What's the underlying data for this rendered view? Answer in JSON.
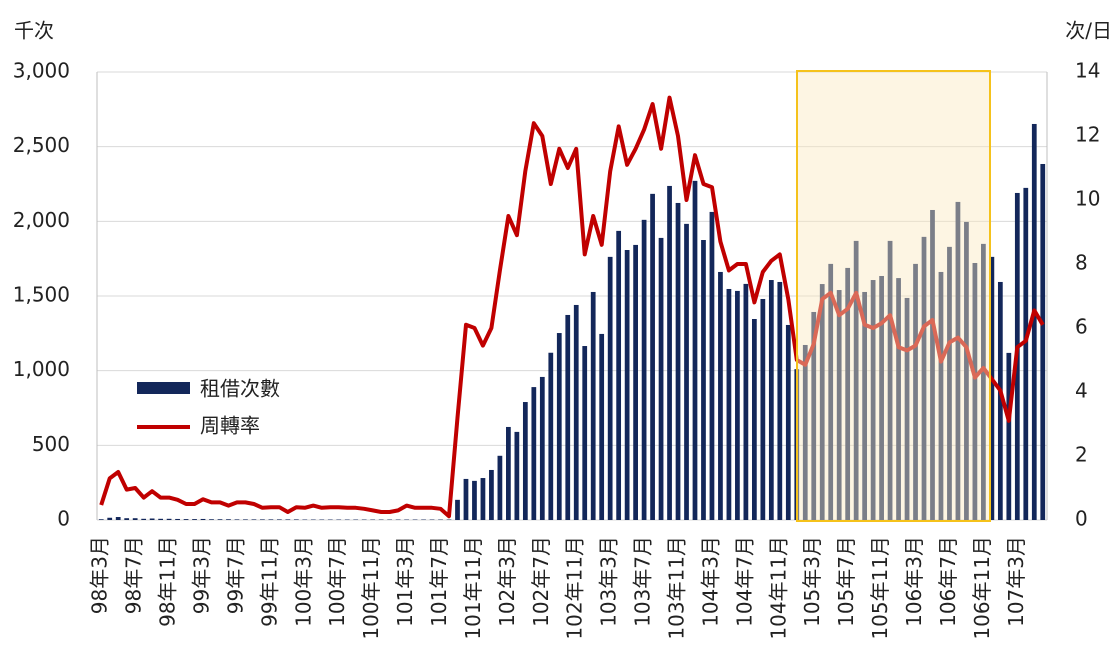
{
  "chart_data": {
    "type": "combo",
    "y_label": "千次",
    "y2_label": "次/日",
    "categories": [
      "98年3月",
      null,
      null,
      null,
      "98年7月",
      null,
      null,
      null,
      "98年11月",
      null,
      null,
      null,
      "99年3月",
      null,
      null,
      null,
      "99年7月",
      null,
      null,
      null,
      "99年11月",
      null,
      null,
      null,
      "100年3月",
      null,
      null,
      null,
      "100年7月",
      null,
      null,
      null,
      "100年11月",
      null,
      null,
      null,
      "101年3月",
      null,
      null,
      null,
      "101年7月",
      null,
      null,
      null,
      "101年11月",
      null,
      null,
      null,
      "102年3月",
      null,
      null,
      null,
      "102年7月",
      null,
      null,
      null,
      "102年11月",
      null,
      null,
      null,
      "103年3月",
      null,
      null,
      null,
      "103年7月",
      null,
      null,
      null,
      "103年11月",
      null,
      null,
      null,
      "104年3月",
      null,
      null,
      null,
      "104年7月",
      null,
      null,
      null,
      "104年11月",
      null,
      null,
      null,
      "105年3月",
      null,
      null,
      null,
      "105年7月",
      null,
      null,
      null,
      "105年11月",
      null,
      null,
      null,
      "106年3月",
      null,
      null,
      null,
      "106年7月",
      null,
      null,
      null,
      "106年11月",
      null,
      null,
      null,
      "107年3月",
      null,
      null,
      null
    ],
    "series": [
      {
        "name": "租借次數",
        "type": "bar",
        "color": "#13275a",
        "values": [
          5,
          15,
          20,
          12,
          12,
          8,
          10,
          8,
          8,
          7,
          6,
          6,
          7,
          5,
          5,
          5,
          4,
          4,
          4,
          4,
          4,
          4,
          4,
          4,
          3,
          3,
          3,
          3,
          3,
          3,
          3,
          3,
          3,
          3,
          3,
          3,
          3,
          3,
          3,
          3,
          3,
          3,
          135,
          275,
          262,
          281,
          335,
          430,
          623,
          590,
          790,
          890,
          958,
          1120,
          1252,
          1373,
          1440,
          1165,
          1527,
          1246,
          1762,
          1936,
          1808,
          1842,
          2010,
          2184,
          1889,
          2237,
          2123,
          1983,
          2271,
          1875,
          2063,
          1661,
          1547,
          1534,
          1581,
          1346,
          1480,
          1607,
          1594,
          1306,
          1010,
          1172,
          1393,
          1580,
          1715,
          1540,
          1688,
          1869,
          1527,
          1607,
          1634,
          1869,
          1620,
          1487,
          1715,
          1896,
          2076,
          1661,
          1829,
          2130,
          1996,
          1721,
          1849,
          1762,
          1594,
          1119,
          2190,
          2224,
          2652,
          2384
        ]
      },
      {
        "name": "周轉率",
        "type": "line",
        "axis": "y2",
        "color": "#c00000",
        "values": [
          0.47,
          1.3,
          1.5,
          0.95,
          1.0,
          0.7,
          0.9,
          0.7,
          0.7,
          0.63,
          0.5,
          0.5,
          0.65,
          0.55,
          0.55,
          0.45,
          0.55,
          0.55,
          0.5,
          0.38,
          0.4,
          0.4,
          0.25,
          0.4,
          0.38,
          0.45,
          0.38,
          0.4,
          0.4,
          0.38,
          0.38,
          0.35,
          0.3,
          0.25,
          0.25,
          0.3,
          0.45,
          0.38,
          0.38,
          0.38,
          0.35,
          0.12,
          3.2,
          6.1,
          6.0,
          5.45,
          6.0,
          7.8,
          9.5,
          8.9,
          10.9,
          12.4,
          12.0,
          10.5,
          11.6,
          11.0,
          11.6,
          8.3,
          9.5,
          8.6,
          10.9,
          12.3,
          11.1,
          11.6,
          12.2,
          13.0,
          11.6,
          13.2,
          12.0,
          10.0,
          11.4,
          10.5,
          10.4,
          8.7,
          7.8,
          8.0,
          8.0,
          6.8,
          7.75,
          8.1,
          8.3,
          6.9,
          5.0,
          4.85,
          5.5,
          6.9,
          7.1,
          6.4,
          6.6,
          7.1,
          6.1,
          6.0,
          6.15,
          6.4,
          5.4,
          5.3,
          5.45,
          6.05,
          6.25,
          4.95,
          5.55,
          5.7,
          5.4,
          4.45,
          4.75,
          4.4,
          4.05,
          3.1,
          5.4,
          5.6,
          6.55,
          6.1
        ]
      }
    ],
    "ylim": [
      0,
      3000
    ],
    "yticks": [
      0,
      500,
      {
        "value": 1000,
        "label": "1,000"
      },
      {
        "value": 1500,
        "label": "1,500"
      },
      {
        "value": 2000,
        "label": "2,000"
      },
      {
        "value": 2500,
        "label": "2,500"
      },
      {
        "value": 3000,
        "label": "3,000"
      }
    ],
    "y2lim": [
      0,
      14
    ],
    "y2ticks": [
      0,
      2,
      4,
      6,
      8,
      10,
      12,
      14
    ],
    "grid": true
  }
}
